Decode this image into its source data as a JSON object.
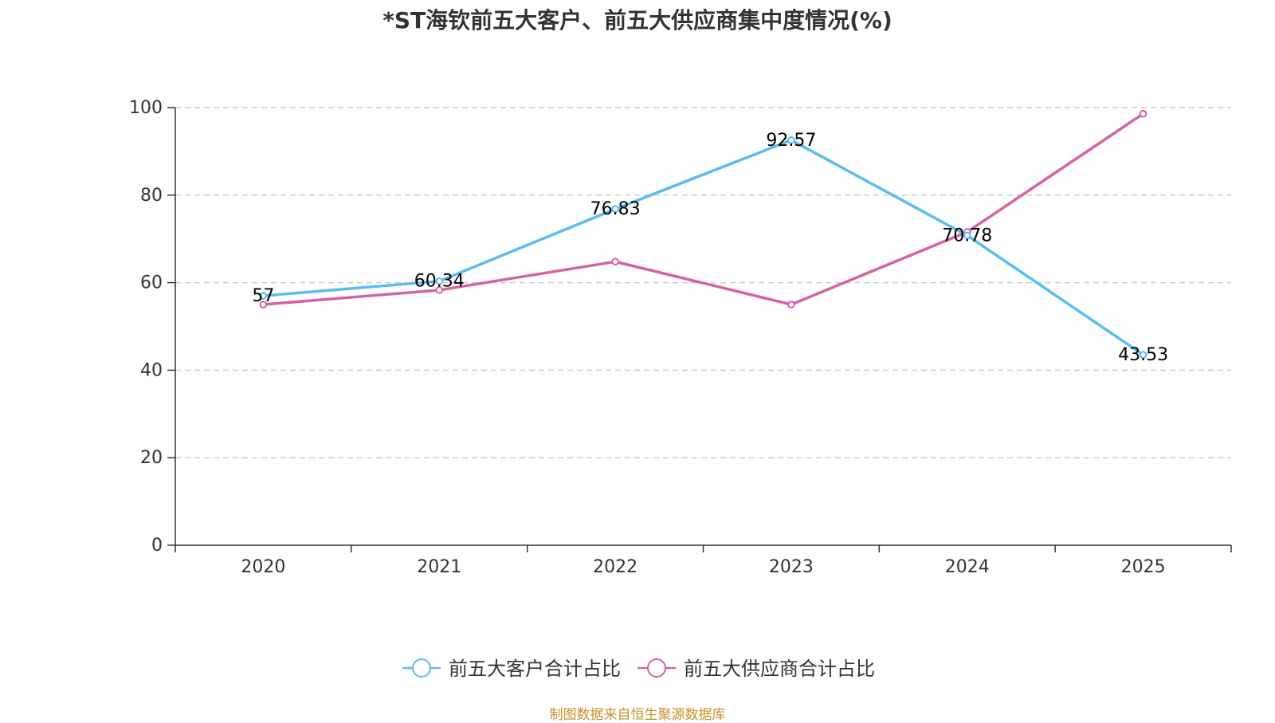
{
  "title": "*ST海钦前五大客户、前五大供应商集中度情况(%)",
  "source": "制图数据来自恒生聚源数据库",
  "colors": {
    "customers": "#5bbcef",
    "suppliers": "#d462a5",
    "grid": "#cccccc",
    "axis": "#333333"
  },
  "chart_data": {
    "type": "line",
    "title": "*ST海钦前五大客户、前五大供应商集中度情况(%)",
    "categories": [
      "2020",
      "2021",
      "2022",
      "2023",
      "2024",
      "2025"
    ],
    "ylim": [
      0,
      100
    ],
    "yticks": [
      0,
      20,
      40,
      60,
      80,
      100
    ],
    "xlabel": "",
    "ylabel": "",
    "grid": true,
    "legend_position": "bottom",
    "series": [
      {
        "name": "前五大客户合计占比",
        "key": "customers",
        "values": [
          57,
          60.34,
          76.83,
          92.57,
          70.78,
          43.53
        ],
        "labels": [
          "57",
          "60.34",
          "76.83",
          "92.57",
          "70.78",
          "43.53"
        ]
      },
      {
        "name": "前五大供应商合计占比",
        "key": "suppliers",
        "values": [
          55,
          58.3,
          64.8,
          55,
          71.6,
          98.6
        ]
      }
    ]
  }
}
